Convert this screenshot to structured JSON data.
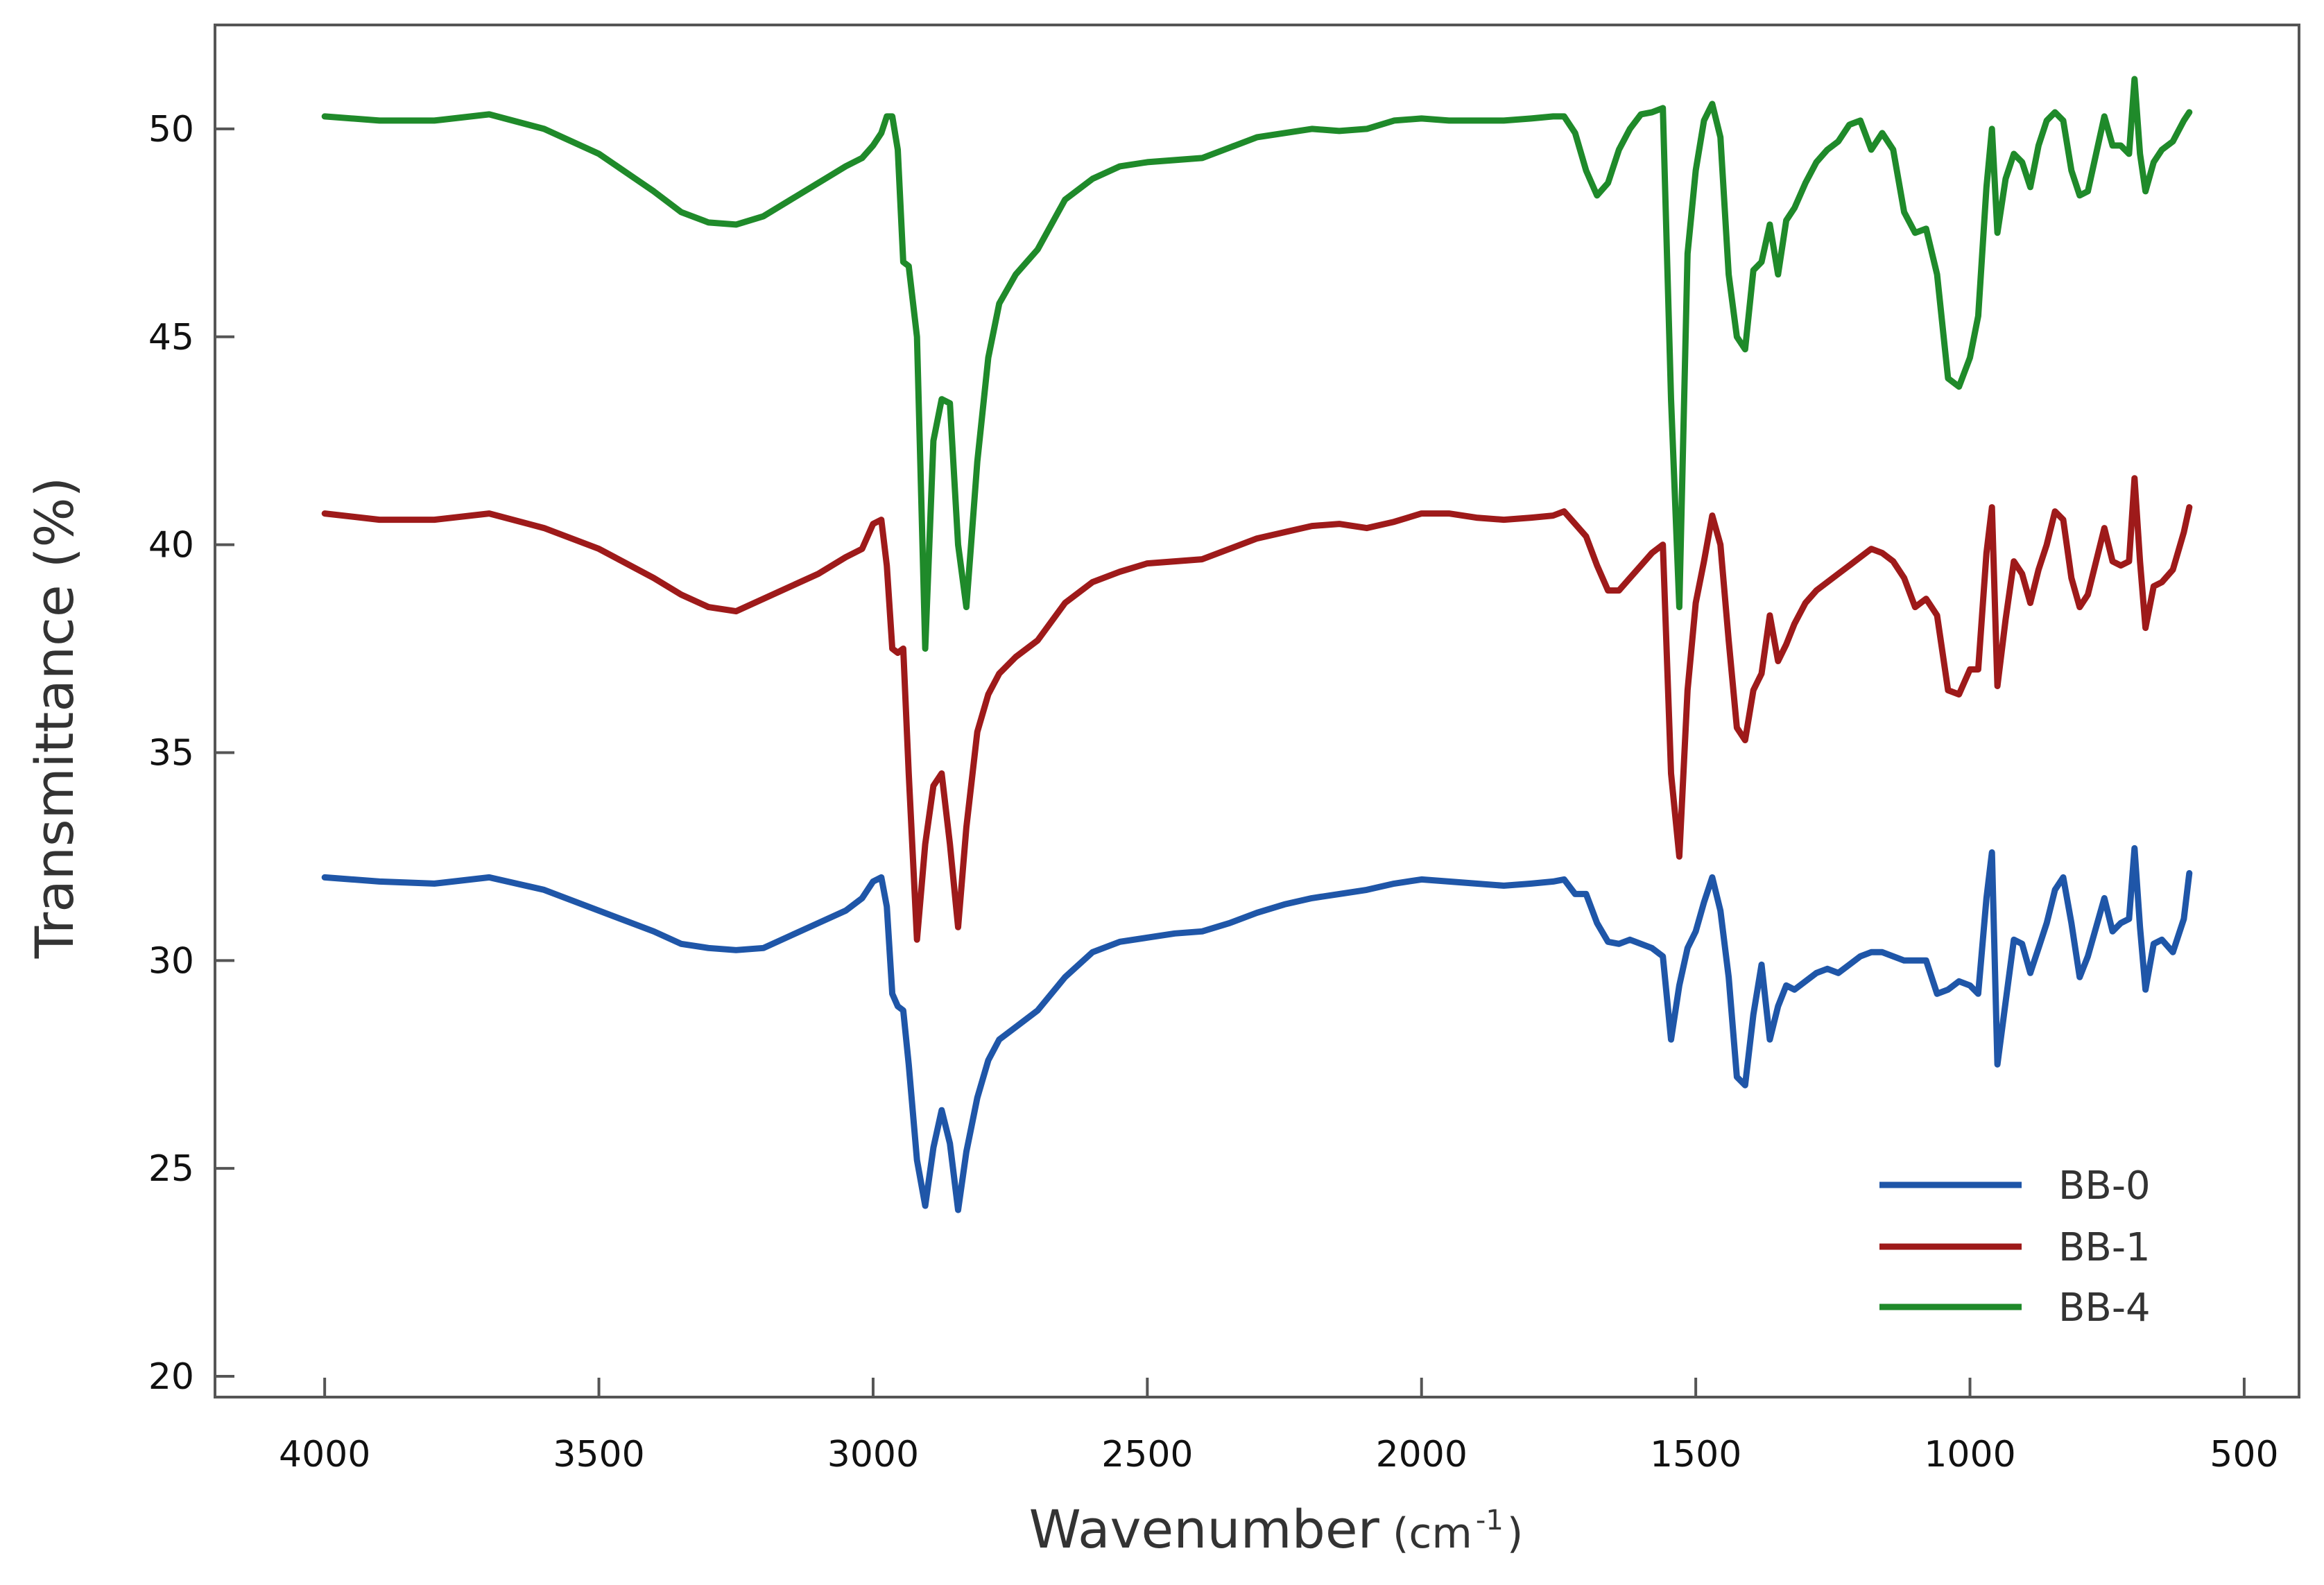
{
  "chart_data": {
    "type": "line",
    "title": "",
    "xlabel": "Wavenumber",
    "xlabel_unit_base": "(cm",
    "xlabel_unit_exp": "-1",
    "xlabel_unit_close": ")",
    "ylabel": "Transmittance (%)",
    "xlim": [
      4200,
      400
    ],
    "ylim": [
      19.5,
      52.5
    ],
    "x_reversed": true,
    "grid": false,
    "legend_position": "bottom-right",
    "x_ticks": [
      {
        "value": 4000,
        "label": "4000"
      },
      {
        "value": 3500,
        "label": "3500"
      },
      {
        "value": 3000,
        "label": "3000"
      },
      {
        "value": 2500,
        "label": "2500"
      },
      {
        "value": 2000,
        "label": "2000"
      },
      {
        "value": 1500,
        "label": "1500"
      },
      {
        "value": 1000,
        "label": "1000"
      },
      {
        "value": 500,
        "label": "500"
      }
    ],
    "y_ticks": [
      {
        "value": 20,
        "label": "20"
      },
      {
        "value": 25,
        "label": "25"
      },
      {
        "value": 30,
        "label": "30"
      },
      {
        "value": 35,
        "label": "35"
      },
      {
        "value": 40,
        "label": "40"
      },
      {
        "value": 45,
        "label": "45"
      },
      {
        "value": 50,
        "label": "50"
      }
    ],
    "series": [
      {
        "name": "BB-0",
        "color": "#1f56a8",
        "x": [
          4000,
          3900,
          3800,
          3700,
          3600,
          3500,
          3400,
          3350,
          3300,
          3250,
          3200,
          3150,
          3100,
          3050,
          3020,
          3000,
          2985,
          2975,
          2965,
          2955,
          2945,
          2935,
          2920,
          2905,
          2890,
          2875,
          2860,
          2845,
          2830,
          2810,
          2790,
          2770,
          2740,
          2700,
          2650,
          2600,
          2550,
          2500,
          2450,
          2400,
          2350,
          2300,
          2250,
          2200,
          2150,
          2100,
          2050,
          2000,
          1950,
          1900,
          1850,
          1800,
          1760,
          1740,
          1720,
          1700,
          1680,
          1660,
          1640,
          1620,
          1600,
          1580,
          1560,
          1545,
          1530,
          1515,
          1500,
          1485,
          1470,
          1455,
          1440,
          1425,
          1410,
          1395,
          1380,
          1365,
          1350,
          1335,
          1320,
          1300,
          1280,
          1260,
          1240,
          1220,
          1200,
          1180,
          1160,
          1140,
          1120,
          1100,
          1080,
          1060,
          1040,
          1020,
          1000,
          985,
          970,
          960,
          950,
          935,
          920,
          905,
          890,
          875,
          860,
          845,
          830,
          815,
          800,
          785,
          770,
          755,
          740,
          725,
          710,
          700,
          690,
          680,
          665,
          650,
          630,
          610,
          600
        ],
        "y": [
          32.0,
          31.9,
          31.85,
          32.0,
          31.7,
          31.2,
          30.7,
          30.4,
          30.3,
          30.25,
          30.3,
          30.6,
          30.9,
          31.2,
          31.5,
          31.9,
          32.0,
          31.3,
          29.2,
          28.9,
          28.8,
          27.5,
          25.2,
          24.1,
          25.5,
          26.4,
          25.6,
          24.0,
          25.4,
          26.7,
          27.6,
          28.1,
          28.4,
          28.8,
          29.6,
          30.2,
          30.45,
          30.55,
          30.65,
          30.7,
          30.9,
          31.15,
          31.35,
          31.5,
          31.6,
          31.7,
          31.85,
          31.95,
          31.9,
          31.85,
          31.8,
          31.85,
          31.9,
          31.95,
          31.6,
          31.6,
          30.9,
          30.45,
          30.4,
          30.5,
          30.4,
          30.3,
          30.1,
          28.1,
          29.4,
          30.3,
          30.7,
          31.4,
          32.0,
          31.2,
          29.6,
          27.2,
          27.0,
          28.7,
          29.9,
          28.1,
          28.9,
          29.4,
          29.3,
          29.5,
          29.7,
          29.8,
          29.7,
          29.9,
          30.1,
          30.2,
          30.2,
          30.1,
          30.0,
          30.0,
          30.0,
          29.2,
          29.3,
          29.5,
          29.4,
          29.2,
          31.5,
          32.6,
          27.5,
          29.0,
          30.5,
          30.4,
          29.7,
          30.3,
          30.9,
          31.7,
          32.0,
          30.9,
          29.6,
          30.1,
          30.8,
          31.5,
          30.7,
          30.9,
          31.0,
          32.7,
          30.8,
          29.3,
          30.4,
          30.5,
          30.2,
          31.0,
          32.1
        ]
      },
      {
        "name": "BB-1",
        "color": "#9e1a1a",
        "x": [
          4000,
          3900,
          3800,
          3700,
          3600,
          3500,
          3400,
          3350,
          3300,
          3250,
          3200,
          3150,
          3100,
          3050,
          3020,
          3000,
          2985,
          2975,
          2965,
          2955,
          2945,
          2935,
          2920,
          2905,
          2890,
          2875,
          2860,
          2845,
          2830,
          2810,
          2790,
          2770,
          2740,
          2700,
          2650,
          2600,
          2550,
          2500,
          2450,
          2400,
          2350,
          2300,
          2250,
          2200,
          2150,
          2100,
          2050,
          2000,
          1950,
          1900,
          1850,
          1800,
          1760,
          1740,
          1720,
          1700,
          1680,
          1660,
          1640,
          1620,
          1600,
          1580,
          1560,
          1545,
          1530,
          1515,
          1500,
          1485,
          1470,
          1455,
          1440,
          1425,
          1410,
          1395,
          1380,
          1365,
          1350,
          1335,
          1320,
          1300,
          1280,
          1260,
          1240,
          1220,
          1200,
          1180,
          1160,
          1140,
          1120,
          1100,
          1080,
          1060,
          1040,
          1020,
          1000,
          985,
          970,
          960,
          950,
          935,
          920,
          905,
          890,
          875,
          860,
          845,
          830,
          815,
          800,
          785,
          770,
          755,
          740,
          725,
          710,
          700,
          690,
          680,
          665,
          650,
          630,
          610,
          600
        ],
        "y": [
          40.75,
          40.6,
          40.6,
          40.75,
          40.4,
          39.9,
          39.2,
          38.8,
          38.5,
          38.4,
          38.7,
          39.0,
          39.3,
          39.7,
          39.9,
          40.5,
          40.6,
          39.5,
          37.5,
          37.4,
          37.5,
          34.5,
          30.5,
          32.8,
          34.2,
          34.5,
          32.8,
          30.8,
          33.2,
          35.5,
          36.4,
          36.9,
          37.3,
          37.7,
          38.6,
          39.1,
          39.35,
          39.55,
          39.6,
          39.65,
          39.9,
          40.15,
          40.3,
          40.45,
          40.5,
          40.4,
          40.55,
          40.75,
          40.75,
          40.65,
          40.6,
          40.65,
          40.7,
          40.8,
          40.5,
          40.2,
          39.5,
          38.9,
          38.9,
          39.2,
          39.5,
          39.8,
          40.0,
          34.5,
          32.5,
          36.5,
          38.6,
          39.6,
          40.7,
          40.0,
          37.7,
          35.6,
          35.3,
          36.5,
          36.9,
          38.3,
          37.2,
          37.6,
          38.1,
          38.6,
          38.9,
          39.1,
          39.3,
          39.5,
          39.7,
          39.9,
          39.8,
          39.6,
          39.2,
          38.5,
          38.7,
          38.3,
          36.5,
          36.4,
          37.0,
          37.0,
          39.8,
          40.9,
          36.6,
          38.2,
          39.6,
          39.3,
          38.6,
          39.4,
          40.0,
          40.8,
          40.6,
          39.2,
          38.5,
          38.8,
          39.6,
          40.4,
          39.6,
          39.5,
          39.6,
          41.6,
          39.6,
          38.0,
          39.0,
          39.1,
          39.4,
          40.3,
          40.9
        ]
      },
      {
        "name": "BB-4",
        "color": "#1f8a2a",
        "x": [
          4000,
          3900,
          3800,
          3700,
          3600,
          3500,
          3400,
          3350,
          3300,
          3250,
          3200,
          3150,
          3100,
          3050,
          3020,
          3000,
          2985,
          2975,
          2965,
          2955,
          2945,
          2935,
          2920,
          2905,
          2890,
          2875,
          2860,
          2845,
          2830,
          2810,
          2790,
          2770,
          2740,
          2700,
          2650,
          2600,
          2550,
          2500,
          2450,
          2400,
          2350,
          2300,
          2250,
          2200,
          2150,
          2100,
          2050,
          2000,
          1950,
          1900,
          1850,
          1800,
          1760,
          1740,
          1720,
          1700,
          1680,
          1660,
          1640,
          1620,
          1600,
          1580,
          1560,
          1545,
          1530,
          1515,
          1500,
          1485,
          1470,
          1455,
          1440,
          1425,
          1410,
          1395,
          1380,
          1365,
          1350,
          1335,
          1320,
          1300,
          1280,
          1260,
          1240,
          1220,
          1200,
          1180,
          1160,
          1140,
          1120,
          1100,
          1080,
          1060,
          1040,
          1020,
          1000,
          985,
          970,
          960,
          950,
          935,
          920,
          905,
          890,
          875,
          860,
          845,
          830,
          815,
          800,
          785,
          770,
          755,
          740,
          725,
          710,
          700,
          690,
          680,
          665,
          650,
          630,
          610,
          600
        ],
        "y": [
          50.3,
          50.2,
          50.2,
          50.35,
          50.0,
          49.4,
          48.5,
          48.0,
          47.75,
          47.7,
          47.9,
          48.3,
          48.7,
          49.1,
          49.3,
          49.6,
          49.9,
          50.3,
          50.3,
          49.5,
          46.8,
          46.7,
          45.0,
          37.5,
          42.5,
          43.5,
          43.4,
          40.0,
          38.5,
          42.0,
          44.5,
          45.8,
          46.5,
          47.1,
          48.3,
          48.8,
          49.1,
          49.2,
          49.25,
          49.3,
          49.55,
          49.8,
          49.9,
          50.0,
          49.95,
          50.0,
          50.2,
          50.25,
          50.2,
          50.2,
          50.2,
          50.25,
          50.3,
          50.3,
          49.9,
          49.0,
          48.4,
          48.7,
          49.5,
          50.0,
          50.35,
          50.4,
          50.5,
          43.5,
          38.5,
          47.0,
          49.0,
          50.2,
          50.6,
          49.8,
          46.5,
          45.0,
          44.7,
          46.6,
          46.8,
          47.7,
          46.5,
          47.8,
          48.1,
          48.7,
          49.2,
          49.5,
          49.7,
          50.1,
          50.2,
          49.5,
          49.9,
          49.5,
          48.0,
          47.5,
          47.6,
          46.5,
          44.0,
          43.8,
          44.5,
          45.5,
          48.6,
          50.0,
          47.5,
          48.8,
          49.4,
          49.2,
          48.6,
          49.6,
          50.2,
          50.4,
          50.2,
          49.0,
          48.4,
          48.5,
          49.4,
          50.3,
          49.6,
          49.6,
          49.4,
          51.2,
          49.4,
          48.5,
          49.2,
          49.5,
          49.7,
          50.2,
          50.4
        ]
      }
    ]
  }
}
